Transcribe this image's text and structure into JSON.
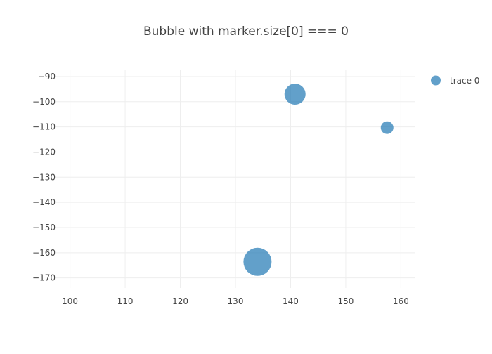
{
  "chart_data": {
    "type": "scatter",
    "title": "Bubble with marker.size[0] === 0",
    "xlabel": "",
    "ylabel": "",
    "xlim": [
      97.5,
      162.5
    ],
    "ylim": [
      -174,
      -87.5
    ],
    "xticks": [
      100,
      110,
      120,
      130,
      140,
      150,
      160
    ],
    "yticks": [
      -90,
      -100,
      -110,
      -120,
      -130,
      -140,
      -150,
      -160,
      -170
    ],
    "xtick_labels": [
      "100",
      "110",
      "120",
      "130",
      "140",
      "150",
      "160"
    ],
    "ytick_labels": [
      "−90",
      "−100",
      "−110",
      "−120",
      "−130",
      "−140",
      "−150",
      "−160",
      "−170"
    ],
    "grid": true,
    "legend_position": "top-right",
    "series": [
      {
        "name": "trace 0",
        "color": "#1f77b4",
        "opacity": 0.7,
        "x": [
          134,
          140.8,
          157.5
        ],
        "y": [
          -163.6,
          -97,
          -110.3
        ],
        "sizes": [
          40,
          30,
          18
        ]
      }
    ]
  }
}
